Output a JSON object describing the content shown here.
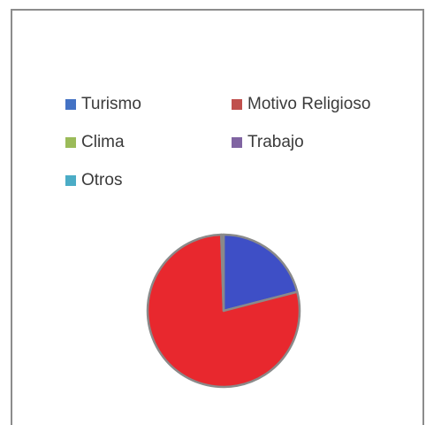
{
  "chart_data": {
    "type": "pie",
    "title": "",
    "legend_position": "top",
    "categories": [
      "Turismo",
      "Motivo Religioso",
      "Clima",
      "Trabajo",
      "Otros"
    ],
    "values": [
      21,
      78.5,
      0,
      0.5,
      0
    ],
    "colors": [
      "#3e4fc6",
      "#e8282e",
      "#8cbb4a",
      "#7a4ba0",
      "#3ab0c9"
    ],
    "legend_swatch_colors": [
      "#4472c4",
      "#c0504d",
      "#9bbb59",
      "#8064a2",
      "#4bacc6"
    ]
  }
}
